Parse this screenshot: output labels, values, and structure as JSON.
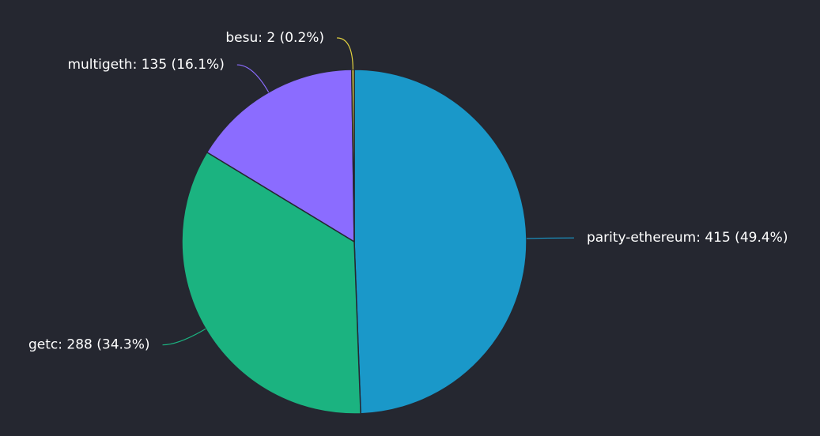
{
  "chart_data": {
    "type": "pie",
    "categories": [
      "parity-ethereum",
      "getc",
      "multigeth",
      "besu"
    ],
    "values": [
      415,
      288,
      135,
      2
    ],
    "value_labels": [
      "parity-ethereum: 415 (49.4%)",
      "getc: 288 (34.3%)",
      "multigeth: 135 (16.1%)",
      "besu: 2 (0.2%)"
    ],
    "colors": [
      "#1a98c9",
      "#1bb380",
      "#8b6cff",
      "#e0cf3f"
    ]
  }
}
